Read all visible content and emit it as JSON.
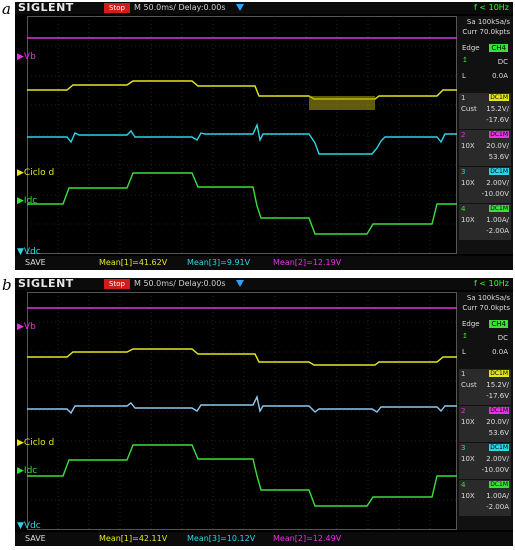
{
  "panels": [
    {
      "label": "a",
      "brand": "SIGLENT",
      "status": "Stop",
      "timebase": "M 50.0ms/ Delay:0.00s",
      "freq": "f < 10Hz",
      "sample_rate": "Sa 100kSa/s",
      "curr": "Curr 70.0kpts",
      "trigger": {
        "mode": "Edge",
        "source": "CH4",
        "coupling": "DC",
        "level_prefix": "L",
        "level": "0.0A"
      },
      "channels": [
        {
          "num": "1",
          "coupling": "DC1M",
          "probe": "Cust",
          "scale": "15.2V/",
          "offset": "-17.6V",
          "color": "#e6e61e"
        },
        {
          "num": "2",
          "coupling": "DC1M",
          "probe": "10X",
          "scale": "20.0V/",
          "offset": "53.6V",
          "color": "#e234e2"
        },
        {
          "num": "3",
          "coupling": "DC1M",
          "probe": "10X",
          "scale": "2.00V/",
          "offset": "-10.00V",
          "color": "#2ed3e6"
        },
        {
          "num": "4",
          "coupling": "DC1M",
          "probe": "10X",
          "scale": "1.00A/",
          "offset": "-2.00A",
          "color": "#38e038"
        }
      ],
      "trace_labels": {
        "vb": "Vb",
        "ciclo": "Ciclo d",
        "idc": "Idc",
        "vdc": "Vdc"
      },
      "bottom": {
        "save": "SAVE",
        "mean1": "Mean[1]=41.62V",
        "mean3": "Mean[3]=9.91V",
        "mean2": "Mean[2]=12.19V"
      }
    },
    {
      "label": "b",
      "brand": "SIGLENT",
      "status": "Stop",
      "timebase": "M 50.0ms/ Delay:0.00s",
      "freq": "f < 10Hz",
      "sample_rate": "Sa 100kSa/s",
      "curr": "Curr 70.0kpts",
      "trigger": {
        "mode": "Edge",
        "source": "CH4",
        "coupling": "DC",
        "level_prefix": "L",
        "level": "0.0A"
      },
      "channels": [
        {
          "num": "1",
          "coupling": "DC1M",
          "probe": "Cust",
          "scale": "15.2V/",
          "offset": "-17.6V",
          "color": "#e6e61e"
        },
        {
          "num": "2",
          "coupling": "DC1M",
          "probe": "10X",
          "scale": "20.0V/",
          "offset": "53.6V",
          "color": "#e234e2"
        },
        {
          "num": "3",
          "coupling": "DC1M",
          "probe": "10X",
          "scale": "2.00V/",
          "offset": "-10.00V",
          "color": "#2ed3e6"
        },
        {
          "num": "4",
          "coupling": "DC1M",
          "probe": "10X",
          "scale": "1.00A/",
          "offset": "-2.00A",
          "color": "#38e038"
        }
      ],
      "trace_labels": {
        "vb": "Vb",
        "ciclo": "Ciclo d",
        "idc": "Idc",
        "vdc": "Vdc"
      },
      "bottom": {
        "save": "SAVE",
        "mean1": "Mean[1]=42.11V",
        "mean3": "Mean[3]=10.12V",
        "mean2": "Mean[2]=12.49V"
      }
    }
  ]
}
